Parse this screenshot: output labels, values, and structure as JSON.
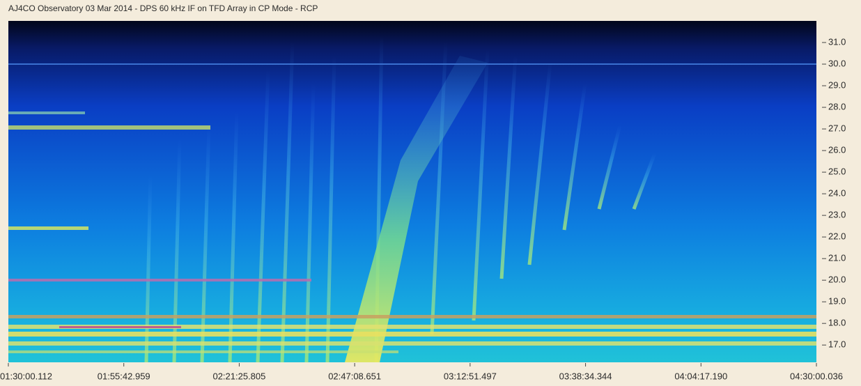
{
  "chart_data": {
    "type": "spectrogram",
    "title": "AJ4CO Observatory 03 Mar 2014 - DPS 60 kHz IF on TFD Array in CP Mode - RCP",
    "xticks": [
      "01:30:00.112",
      "01:55:42.959",
      "02:21:25.805",
      "02:47:08.651",
      "03:12:51.497",
      "03:38:34.344",
      "04:04:17.190",
      "04:30:00.036"
    ],
    "ylim": [
      16.2,
      32.0
    ],
    "yticks": [
      {
        "value": 17,
        "label": "17.0"
      },
      {
        "value": 18,
        "label": "18.0"
      },
      {
        "value": 19,
        "label": "19.0"
      },
      {
        "value": 20,
        "label": "20.0"
      },
      {
        "value": 21,
        "label": "21.0"
      },
      {
        "value": 22,
        "label": "22.0"
      },
      {
        "value": 23,
        "label": "23.0"
      },
      {
        "value": 24,
        "label": "24.0"
      },
      {
        "value": 25,
        "label": "25.0"
      },
      {
        "value": 26,
        "label": "26.0"
      },
      {
        "value": 27,
        "label": "27.0"
      },
      {
        "value": 28,
        "label": "28.0"
      },
      {
        "value": 29,
        "label": "29.0"
      },
      {
        "value": 30,
        "label": "30.0"
      },
      {
        "value": 31,
        "label": "31.0"
      }
    ]
  }
}
